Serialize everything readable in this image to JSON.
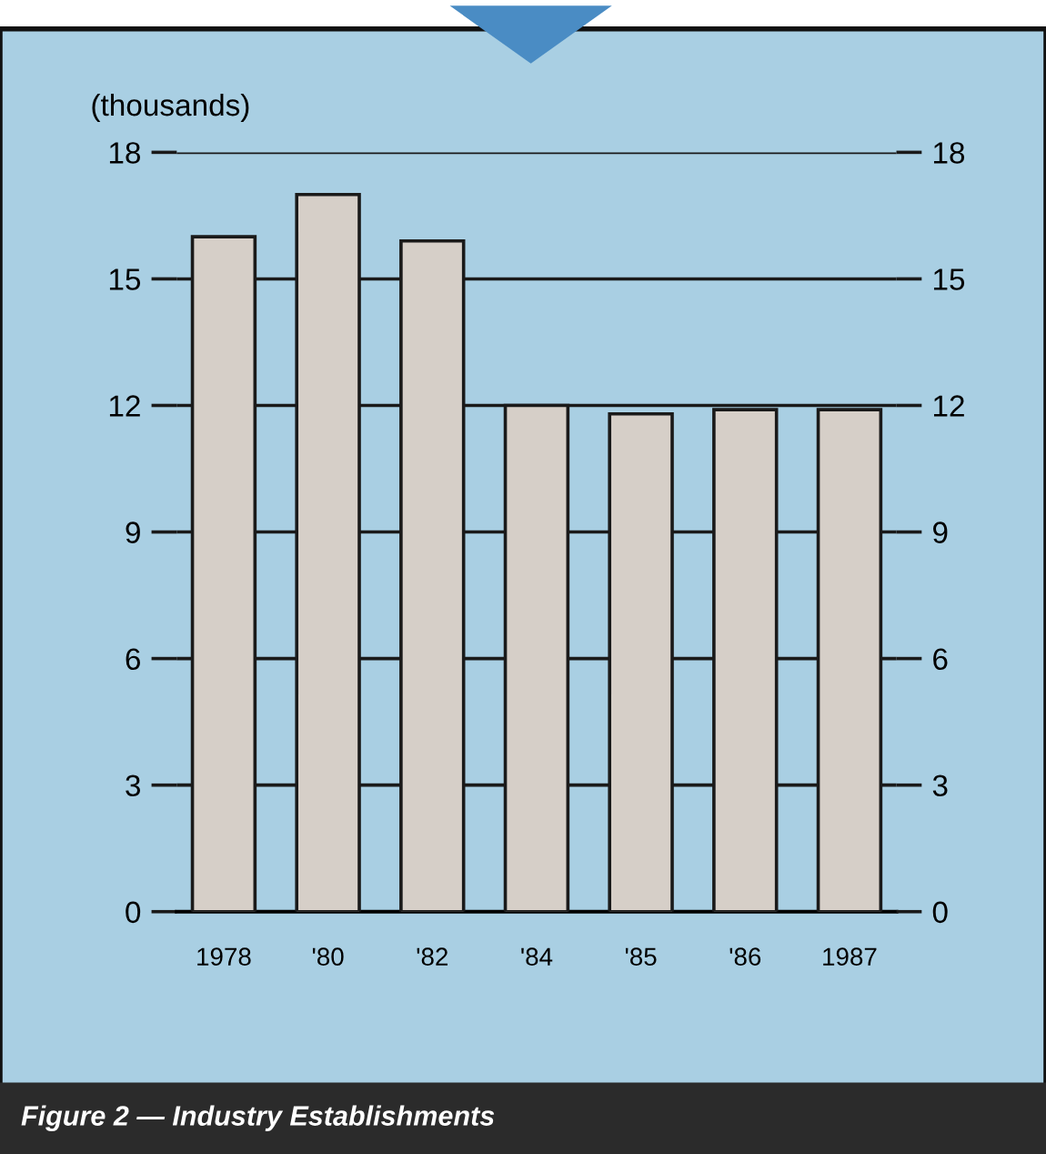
{
  "chart_data": {
    "type": "bar",
    "ylabel": "(thousands)",
    "categories": [
      "1978",
      "'80",
      "'82",
      "'84",
      "'85",
      "'86",
      "1987"
    ],
    "values": [
      16.0,
      17.0,
      15.9,
      12.0,
      11.8,
      11.9,
      11.9
    ],
    "color": "#d6cfc8",
    "ylim": [
      0,
      18
    ],
    "yticks": [
      0,
      3,
      6,
      9,
      12,
      15,
      18
    ],
    "y2lim": [
      0,
      18
    ],
    "y2ticks": [
      0,
      3,
      6,
      9,
      12,
      15,
      18
    ],
    "grid": "y",
    "annotations": [
      "Figure 2 — Industry Establishments"
    ]
  }
}
